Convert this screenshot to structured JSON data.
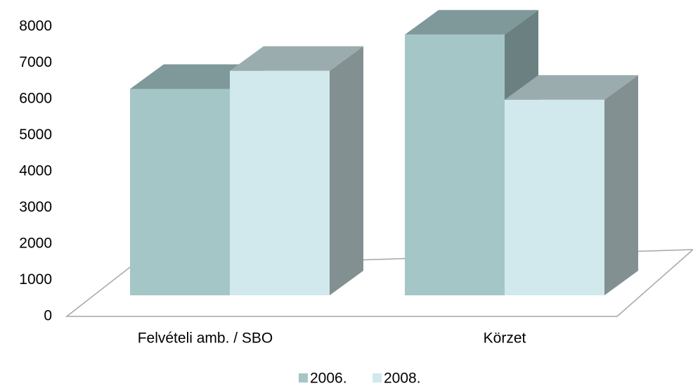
{
  "chart_data": {
    "type": "bar3d",
    "categories": [
      "Felvételi amb.  / SBO",
      "Körzet"
    ],
    "series": [
      {
        "name": "2006.",
        "color": "#a5c6c7",
        "values": [
          5700,
          7200
        ]
      },
      {
        "name": "2008.",
        "color": "#d1e9ec",
        "values": [
          6200,
          5400
        ]
      }
    ],
    "ylim": [
      0,
      8000
    ],
    "yticks": [
      0,
      1000,
      2000,
      3000,
      4000,
      5000,
      6000,
      7000,
      8000
    ],
    "legend": "bottom"
  }
}
